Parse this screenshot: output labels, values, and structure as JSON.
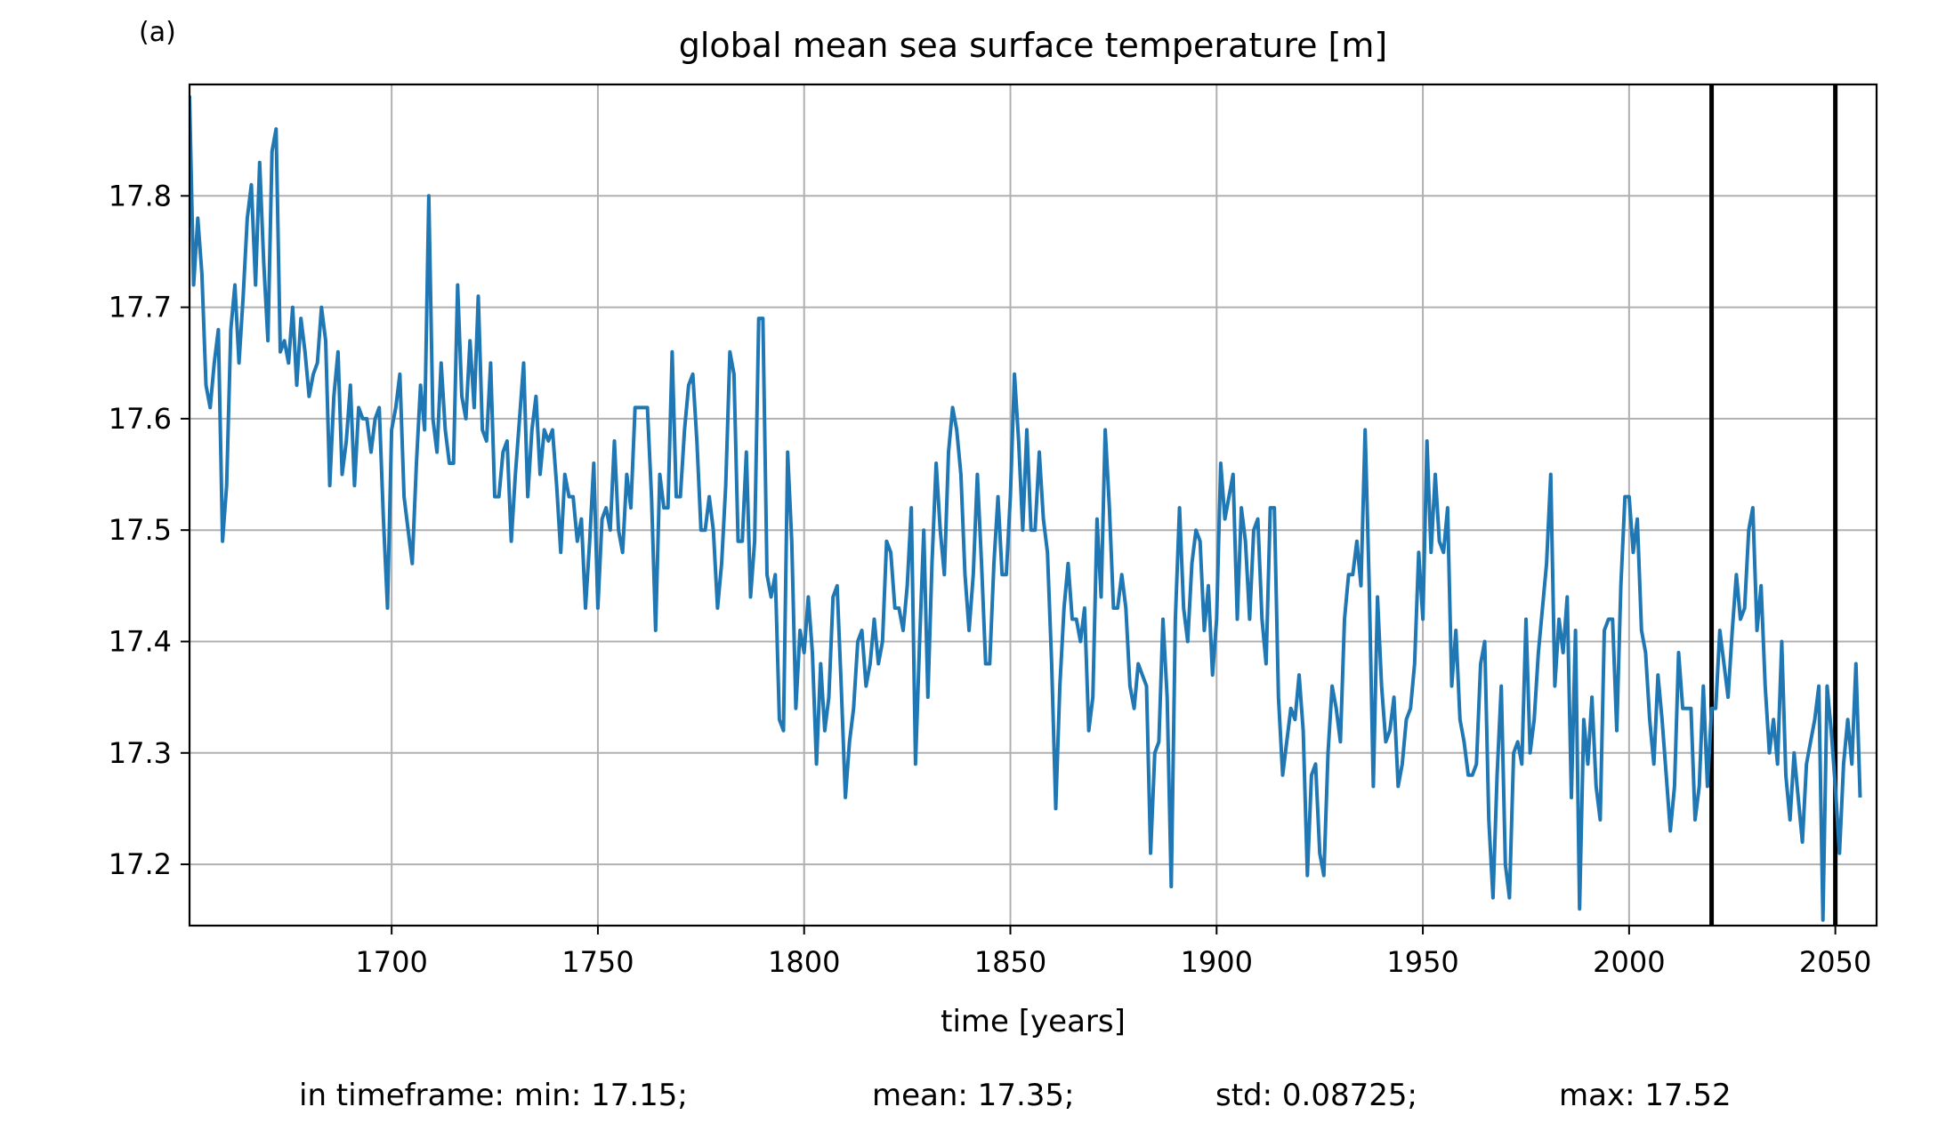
{
  "panel_label": "(a)",
  "stats": {
    "min": "in timeframe: min: 17.15;",
    "mean": "mean: 17.35;",
    "std": "std: 0.08725;",
    "max": "max: 17.52"
  },
  "chart_data": {
    "type": "line",
    "title": "global mean sea surface temperature [m]",
    "xlabel": "time [years]",
    "ylabel": "",
    "xlim": [
      1651,
      2060
    ],
    "ylim": [
      17.145,
      17.9
    ],
    "grid": true,
    "x_ticks": [
      "1700",
      "1750",
      "1800",
      "1850",
      "1900",
      "1950",
      "2000",
      "2050"
    ],
    "y_ticks": [
      "17.2",
      "17.3",
      "17.4",
      "17.5",
      "17.6",
      "17.7",
      "17.8"
    ],
    "vertical_markers": [
      2020,
      2050
    ],
    "series": [
      {
        "color": "#1f77b4",
        "x_start": 1651,
        "x_step": 1,
        "values": [
          17.89,
          17.72,
          17.78,
          17.73,
          17.63,
          17.61,
          17.65,
          17.68,
          17.49,
          17.54,
          17.68,
          17.72,
          17.65,
          17.71,
          17.78,
          17.81,
          17.72,
          17.83,
          17.74,
          17.67,
          17.84,
          17.86,
          17.66,
          17.67,
          17.65,
          17.7,
          17.63,
          17.69,
          17.66,
          17.62,
          17.64,
          17.65,
          17.7,
          17.67,
          17.54,
          17.62,
          17.66,
          17.55,
          17.58,
          17.63,
          17.54,
          17.61,
          17.6,
          17.6,
          17.57,
          17.6,
          17.61,
          17.51,
          17.43,
          17.59,
          17.61,
          17.64,
          17.53,
          17.5,
          17.47,
          17.56,
          17.63,
          17.59,
          17.8,
          17.6,
          17.57,
          17.65,
          17.59,
          17.56,
          17.56,
          17.72,
          17.62,
          17.6,
          17.67,
          17.61,
          17.71,
          17.59,
          17.58,
          17.65,
          17.53,
          17.53,
          17.57,
          17.58,
          17.49,
          17.55,
          17.6,
          17.65,
          17.53,
          17.59,
          17.62,
          17.55,
          17.59,
          17.58,
          17.59,
          17.54,
          17.48,
          17.55,
          17.53,
          17.53,
          17.49,
          17.51,
          17.43,
          17.49,
          17.56,
          17.43,
          17.51,
          17.52,
          17.5,
          17.58,
          17.5,
          17.48,
          17.55,
          17.52,
          17.61,
          17.61,
          17.61,
          17.61,
          17.53,
          17.41,
          17.55,
          17.52,
          17.52,
          17.66,
          17.53,
          17.53,
          17.59,
          17.63,
          17.64,
          17.58,
          17.5,
          17.5,
          17.53,
          17.5,
          17.43,
          17.47,
          17.54,
          17.66,
          17.64,
          17.49,
          17.49,
          17.57,
          17.44,
          17.49,
          17.69,
          17.69,
          17.46,
          17.44,
          17.46,
          17.33,
          17.32,
          17.57,
          17.49,
          17.34,
          17.41,
          17.39,
          17.44,
          17.39,
          17.29,
          17.38,
          17.32,
          17.35,
          17.44,
          17.45,
          17.36,
          17.26,
          17.31,
          17.34,
          17.4,
          17.41,
          17.36,
          17.38,
          17.42,
          17.38,
          17.4,
          17.49,
          17.48,
          17.43,
          17.43,
          17.41,
          17.45,
          17.52,
          17.29,
          17.4,
          17.5,
          17.35,
          17.47,
          17.56,
          17.5,
          17.46,
          17.57,
          17.61,
          17.59,
          17.55,
          17.46,
          17.41,
          17.46,
          17.55,
          17.47,
          17.38,
          17.38,
          17.47,
          17.53,
          17.46,
          17.46,
          17.53,
          17.64,
          17.58,
          17.5,
          17.59,
          17.5,
          17.5,
          17.57,
          17.51,
          17.48,
          17.38,
          17.25,
          17.36,
          17.43,
          17.47,
          17.42,
          17.42,
          17.4,
          17.43,
          17.32,
          17.35,
          17.51,
          17.44,
          17.59,
          17.52,
          17.43,
          17.43,
          17.46,
          17.43,
          17.36,
          17.34,
          17.38,
          17.37,
          17.36,
          17.21,
          17.3,
          17.31,
          17.42,
          17.35,
          17.18,
          17.42,
          17.52,
          17.43,
          17.4,
          17.47,
          17.5,
          17.49,
          17.41,
          17.45,
          17.37,
          17.42,
          17.56,
          17.51,
          17.53,
          17.55,
          17.42,
          17.52,
          17.49,
          17.42,
          17.5,
          17.51,
          17.42,
          17.38,
          17.52,
          17.52,
          17.35,
          17.28,
          17.31,
          17.34,
          17.33,
          17.37,
          17.32,
          17.19,
          17.28,
          17.29,
          17.21,
          17.19,
          17.3,
          17.36,
          17.34,
          17.31,
          17.42,
          17.46,
          17.46,
          17.49,
          17.45,
          17.59,
          17.45,
          17.27,
          17.44,
          17.36,
          17.31,
          17.32,
          17.35,
          17.27,
          17.29,
          17.33,
          17.34,
          17.38,
          17.48,
          17.42,
          17.58,
          17.48,
          17.55,
          17.49,
          17.48,
          17.52,
          17.36,
          17.41,
          17.33,
          17.31,
          17.28,
          17.28,
          17.29,
          17.38,
          17.4,
          17.24,
          17.17,
          17.28,
          17.36,
          17.2,
          17.17,
          17.3,
          17.31,
          17.29,
          17.42,
          17.3,
          17.33,
          17.39,
          17.43,
          17.47,
          17.55,
          17.36,
          17.42,
          17.39,
          17.44,
          17.26,
          17.41,
          17.16,
          17.33,
          17.29,
          17.35,
          17.27,
          17.24,
          17.41,
          17.42,
          17.42,
          17.32,
          17.45,
          17.53,
          17.53,
          17.48,
          17.51,
          17.41,
          17.39,
          17.33,
          17.29,
          17.37,
          17.33,
          17.28,
          17.23,
          17.27,
          17.39,
          17.34,
          17.34,
          17.34,
          17.24,
          17.27,
          17.36,
          17.27,
          17.34,
          17.34,
          17.41,
          17.38,
          17.35,
          17.41,
          17.46,
          17.42,
          17.43,
          17.5,
          17.52,
          17.41,
          17.45,
          17.36,
          17.3,
          17.33,
          17.29,
          17.4,
          17.28,
          17.24,
          17.3,
          17.26,
          17.22,
          17.29,
          17.31,
          17.33,
          17.36,
          17.15,
          17.36,
          17.32,
          17.27,
          17.21,
          17.29,
          17.33,
          17.29,
          17.38,
          17.26
        ]
      }
    ]
  }
}
